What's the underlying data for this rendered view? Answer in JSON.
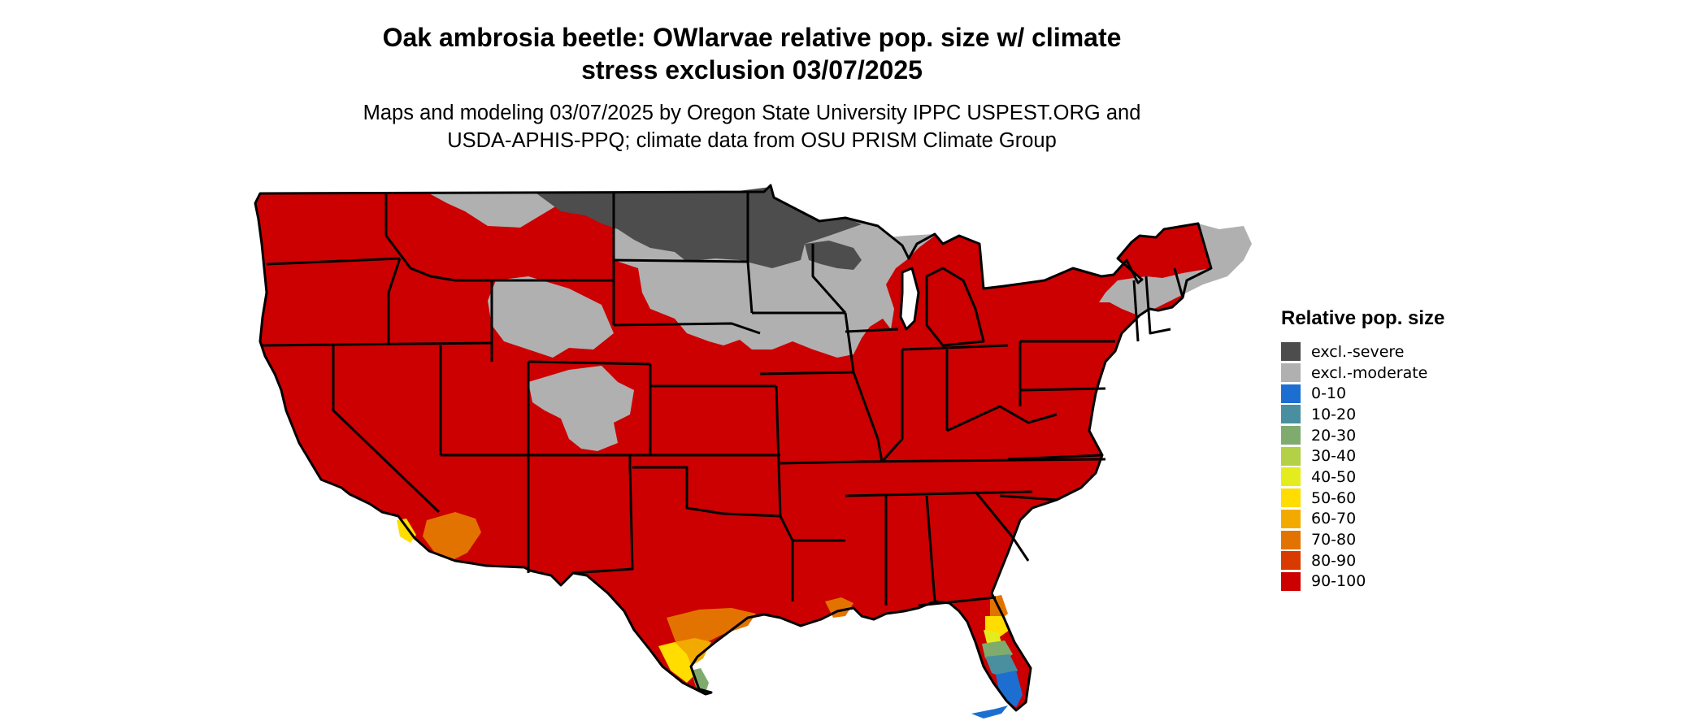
{
  "title": {
    "line1": "Oak ambrosia beetle: OWlarvae relative pop. size w/ climate",
    "line2": "stress exclusion 03/07/2025"
  },
  "subtitle": {
    "line1": "Maps and modeling 03/07/2025 by Oregon State University IPPC USPEST.ORG and",
    "line2": "USDA-APHIS-PPQ; climate data from OSU PRISM Climate Group"
  },
  "legend": {
    "title": "Relative pop. size",
    "items": [
      {
        "label": "excl.-severe",
        "color": "#4d4d4d"
      },
      {
        "label": "excl.-moderate",
        "color": "#b0b0b0"
      },
      {
        "label": "0-10",
        "color": "#1c6fd1"
      },
      {
        "label": "10-20",
        "color": "#4a8fa0"
      },
      {
        "label": "20-30",
        "color": "#7fac6e"
      },
      {
        "label": "30-40",
        "color": "#b3d046"
      },
      {
        "label": "40-50",
        "color": "#e4ec1e"
      },
      {
        "label": "50-60",
        "color": "#ffdd00"
      },
      {
        "label": "60-70",
        "color": "#f2aa00"
      },
      {
        "label": "70-80",
        "color": "#e37300"
      },
      {
        "label": "80-90",
        "color": "#d93a00"
      },
      {
        "label": "90-100",
        "color": "#cc0000"
      }
    ]
  },
  "map": {
    "region": "contiguous-us",
    "dominant_class": "90-100",
    "colors": {
      "excl_severe": "#4d4d4d",
      "excl_moderate": "#b0b0b0",
      "c0_10": "#1c6fd1",
      "c10_20": "#4a8fa0",
      "c20_30": "#7fac6e",
      "c40_50": "#e4ec1e",
      "c50_60": "#ffdd00",
      "c60_70": "#f2aa00",
      "c70_80": "#e37300",
      "c80_90": "#d93a00",
      "c90_100": "#cc0000",
      "border": "#000000"
    }
  }
}
